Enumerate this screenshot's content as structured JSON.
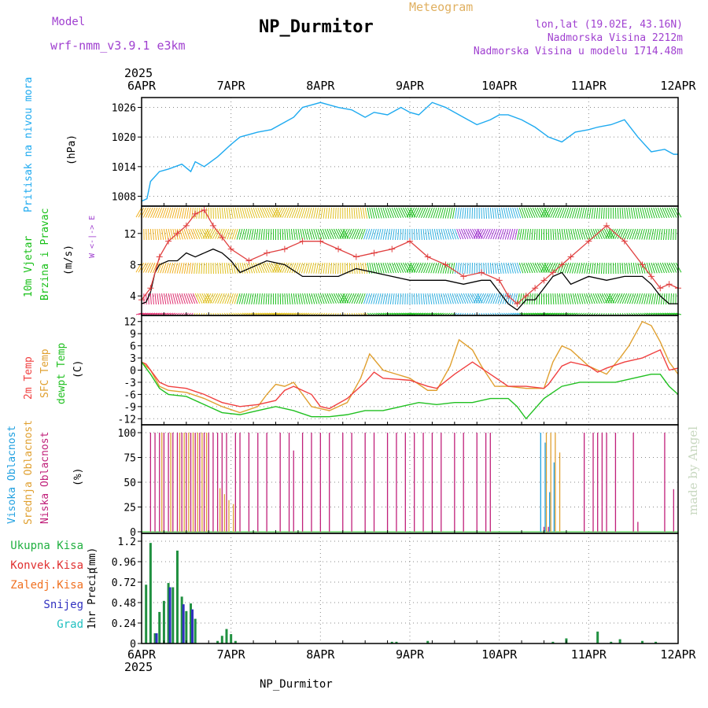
{
  "header": {
    "title": "NP_Durmitor",
    "subtitle": "Meteogram",
    "model_label": "Model",
    "model_name": "wrf-nmm_v3.9.1 e3km",
    "coords": "lon,lat (19.02E, 43.16N)",
    "elevation": "Nadmorska Visina 2212m",
    "model_elevation": "Nadmorska Visina u modelu 1714.48m",
    "year_top": "2025",
    "year_bottom": "2025",
    "footer": "NP_Durmitor",
    "credit": "made by Angel"
  },
  "colors": {
    "pressure": "#1eaaf0",
    "wind_title": "#18c018",
    "temp_2m": "#f04040",
    "sfc_temp": "#e0a030",
    "dewpt": "#20c020",
    "cloud_high": "#20a0e0",
    "cloud_mid": "#e0a030",
    "cloud_low": "#c0207a",
    "precip_total": "#209040",
    "precip_conv": "#e03030",
    "precip_frozen": "#f07020",
    "precip_snow": "#3030c0",
    "precip_hail": "#20c0c0",
    "model": "#a040d0"
  },
  "chart_data": [
    {
      "type": "line",
      "panel": "pressure",
      "ylabel": "Pritisak na nivou mora",
      "unit": "(hPa)",
      "x_categories": [
        "6APR",
        "7APR",
        "8APR",
        "9APR",
        "10APR",
        "11APR",
        "12APR"
      ],
      "yticks": [
        1008,
        1014,
        1020,
        1026
      ],
      "ylim": [
        1006,
        1028
      ],
      "series": [
        {
          "name": "Pressure",
          "x": [
            0,
            0.06,
            0.1,
            0.2,
            0.3,
            0.45,
            0.55,
            0.6,
            0.7,
            0.85,
            1.0,
            1.1,
            1.3,
            1.45,
            1.6,
            1.7,
            1.8,
            1.9,
            2.0,
            2.1,
            2.2,
            2.35,
            2.5,
            2.6,
            2.75,
            2.9,
            3.0,
            3.1,
            3.25,
            3.4,
            3.6,
            3.75,
            3.9,
            4.0,
            4.1,
            4.25,
            4.4,
            4.55,
            4.7,
            4.85,
            5.0,
            5.1,
            5.25,
            5.4,
            5.55,
            5.7,
            5.85,
            5.95,
            6.0
          ],
          "values": [
            1007,
            1007.5,
            1011,
            1013,
            1013.5,
            1014.5,
            1013,
            1015,
            1014,
            1016,
            1018.5,
            1020,
            1021,
            1021.5,
            1023,
            1024,
            1026,
            1026.5,
            1027,
            1026.5,
            1026,
            1025.5,
            1024,
            1025,
            1024.5,
            1026,
            1025,
            1024.5,
            1027,
            1026,
            1024,
            1022.5,
            1023.5,
            1024.5,
            1024.5,
            1023.5,
            1022,
            1020,
            1019,
            1021,
            1021.5,
            1022,
            1022.5,
            1023.5,
            1020,
            1017,
            1017.5,
            1016.5,
            1016.5
          ]
        }
      ]
    },
    {
      "type": "line",
      "panel": "wind",
      "ylabel_1": "10m Vjetar",
      "ylabel_2": "Brzina i Pravac",
      "unit": "(m/s)",
      "compass": "W <-|-> E",
      "yticks": [
        4,
        8,
        12
      ],
      "ylim": [
        1.5,
        15.5
      ],
      "series": [
        {
          "name": "Wind speed",
          "x": [
            0,
            0.05,
            0.1,
            0.15,
            0.2,
            0.3,
            0.4,
            0.5,
            0.6,
            0.7,
            0.8,
            0.9,
            1.0,
            1.1,
            1.2,
            1.4,
            1.6,
            1.8,
            2.0,
            2.2,
            2.4,
            2.6,
            2.8,
            3.0,
            3.2,
            3.4,
            3.6,
            3.8,
            3.9,
            4.0,
            4.1,
            4.2,
            4.3,
            4.4,
            4.5,
            4.6,
            4.7,
            4.8,
            5.0,
            5.2,
            5.4,
            5.6,
            5.7,
            5.8,
            5.9,
            6.0
          ],
          "values": [
            3,
            3.2,
            4.5,
            7,
            8,
            8.5,
            8.5,
            9.5,
            9,
            9.5,
            10,
            9.5,
            8.5,
            7,
            7.5,
            8.5,
            8,
            6.5,
            6.5,
            6.5,
            7.5,
            7,
            6.5,
            6,
            6,
            6,
            5.5,
            6,
            6,
            4.5,
            3,
            2.2,
            3.5,
            3.5,
            5,
            6.5,
            7,
            5.5,
            6.5,
            6,
            6.5,
            6.5,
            5.5,
            4,
            3,
            3
          ]
        },
        {
          "name": "Gust",
          "x": [
            0,
            0.1,
            0.2,
            0.3,
            0.4,
            0.5,
            0.6,
            0.7,
            0.8,
            0.9,
            1.0,
            1.2,
            1.4,
            1.6,
            1.8,
            2.0,
            2.2,
            2.4,
            2.6,
            2.8,
            3.0,
            3.2,
            3.4,
            3.6,
            3.8,
            4.0,
            4.1,
            4.2,
            4.3,
            4.4,
            4.5,
            4.6,
            4.7,
            4.8,
            5.0,
            5.2,
            5.4,
            5.6,
            5.7,
            5.8,
            5.9,
            6.0
          ],
          "values": [
            3.5,
            5,
            9,
            11,
            12,
            13,
            14.5,
            15,
            13,
            11.5,
            10,
            8.5,
            9.5,
            10,
            11,
            11,
            10,
            9,
            9.5,
            10,
            11,
            9,
            8,
            6.5,
            7,
            6,
            4,
            3,
            4,
            5,
            6,
            7,
            8,
            9,
            11,
            13,
            11,
            8,
            6.5,
            5,
            5.5,
            5
          ]
        }
      ]
    },
    {
      "type": "line",
      "panel": "temperature",
      "ylabel_1": "2m Temp",
      "ylabel_2": "SFC Temp",
      "ylabel_3": "dewpt Temp",
      "unit": "(C)",
      "yticks": [
        -12,
        -9,
        -6,
        -3,
        0,
        3,
        6,
        9,
        12
      ],
      "ylim": [
        -13.5,
        13.5
      ],
      "series": [
        {
          "name": "2m Temp",
          "x": [
            0,
            0.05,
            0.1,
            0.2,
            0.3,
            0.5,
            0.7,
            0.9,
            1.1,
            1.3,
            1.5,
            1.6,
            1.7,
            1.9,
            2.0,
            2.1,
            2.3,
            2.5,
            2.6,
            2.7,
            3.0,
            3.2,
            3.3,
            3.5,
            3.7,
            3.9,
            4.1,
            4.3,
            4.5,
            4.55,
            4.7,
            4.8,
            5.0,
            5.1,
            5.2,
            5.4,
            5.6,
            5.7,
            5.8,
            5.9,
            6.0
          ],
          "values": [
            2,
            1.5,
            0,
            -3,
            -4,
            -4.5,
            -6,
            -8,
            -9,
            -8.5,
            -7.5,
            -5,
            -4,
            -6,
            -9,
            -9.5,
            -7,
            -3,
            -0.5,
            -2,
            -2.5,
            -4,
            -4.5,
            -1,
            2,
            -1,
            -4,
            -4,
            -4.5,
            -3.5,
            1,
            2,
            1,
            -0.5,
            0.5,
            2,
            3,
            4,
            5,
            0,
            0.5
          ]
        },
        {
          "name": "SFC Temp",
          "x": [
            0,
            0.1,
            0.2,
            0.3,
            0.5,
            0.7,
            0.9,
            1.1,
            1.3,
            1.4,
            1.5,
            1.6,
            1.7,
            1.8,
            1.9,
            2.0,
            2.1,
            2.3,
            2.45,
            2.55,
            2.7,
            3.0,
            3.2,
            3.3,
            3.45,
            3.55,
            3.7,
            3.8,
            3.95,
            4.1,
            4.3,
            4.5,
            4.6,
            4.7,
            4.8,
            5.0,
            5.2,
            5.35,
            5.45,
            5.6,
            5.7,
            5.8,
            5.9,
            6.0
          ],
          "values": [
            2,
            0,
            -4,
            -5,
            -5.5,
            -7,
            -9,
            -10.5,
            -9,
            -6,
            -3.5,
            -4,
            -3,
            -6,
            -9,
            -9.5,
            -10,
            -8,
            -2,
            4,
            0,
            -2,
            -5,
            -5,
            1,
            7.5,
            5,
            1,
            -4,
            -4,
            -4.5,
            -4.5,
            2,
            6,
            5,
            1,
            -1,
            3,
            6,
            12,
            11,
            7,
            2,
            -1
          ]
        },
        {
          "name": "Dewpoint",
          "x": [
            0,
            0.1,
            0.2,
            0.3,
            0.5,
            0.7,
            0.9,
            1.1,
            1.3,
            1.5,
            1.7,
            1.9,
            2.1,
            2.3,
            2.5,
            2.7,
            2.9,
            3.1,
            3.3,
            3.5,
            3.7,
            3.9,
            4.1,
            4.2,
            4.3,
            4.5,
            4.7,
            4.9,
            5.1,
            5.3,
            5.5,
            5.7,
            5.8,
            5.9,
            6.0
          ],
          "values": [
            2,
            -1,
            -4.5,
            -6,
            -6.5,
            -8.5,
            -10.5,
            -11,
            -10,
            -9,
            -10,
            -11.5,
            -11.5,
            -11,
            -10,
            -10,
            -9,
            -8,
            -8.5,
            -8,
            -8,
            -7,
            -7,
            -9,
            -12,
            -7,
            -4,
            -3,
            -3,
            -3,
            -2,
            -1,
            -1,
            -4,
            -6
          ]
        }
      ]
    },
    {
      "type": "bar",
      "panel": "clouds",
      "ylabel_1": "Visoka Oblacnost",
      "ylabel_2": "Srednja Oblacnost",
      "ylabel_3": "Niska Oblacnost",
      "unit": "(%)",
      "yticks": [
        0,
        25,
        50,
        75,
        100
      ],
      "ylim": [
        0,
        100
      ],
      "low": {
        "x": [
          0.1,
          0.15,
          0.2,
          0.25,
          0.3,
          0.35,
          0.4,
          0.45,
          0.5,
          0.55,
          0.6,
          0.65,
          0.7,
          0.75,
          0.8,
          0.85,
          0.9,
          0.95,
          1.05,
          1.1,
          1.2,
          1.3,
          1.4,
          1.55,
          1.65,
          1.7,
          1.8,
          1.9,
          2.0,
          2.1,
          2.25,
          2.35,
          2.5,
          2.6,
          2.75,
          2.85,
          2.95,
          3.05,
          3.15,
          3.25,
          3.35,
          3.5,
          3.6,
          3.75,
          3.85,
          3.9,
          4.5,
          4.55,
          4.95,
          5.05,
          5.1,
          5.15,
          5.2,
          5.3,
          5.5,
          5.55,
          5.85,
          5.95
        ],
        "values": [
          100,
          100,
          100,
          100,
          100,
          100,
          100,
          100,
          100,
          100,
          100,
          100,
          100,
          100,
          100,
          100,
          100,
          100,
          100,
          100,
          100,
          100,
          100,
          100,
          100,
          82,
          100,
          100,
          100,
          100,
          100,
          100,
          100,
          100,
          100,
          100,
          100,
          100,
          100,
          100,
          100,
          100,
          100,
          100,
          100,
          100,
          5,
          5,
          100,
          100,
          100,
          100,
          100,
          100,
          100,
          10,
          100,
          43
        ]
      },
      "mid": {
        "x": [
          0.2,
          0.3,
          0.4,
          0.45,
          0.5,
          0.55,
          0.6,
          0.65,
          0.7,
          0.85,
          0.9,
          0.95,
          1.0,
          4.5,
          4.55,
          4.6,
          4.65
        ],
        "values": [
          100,
          100,
          100,
          100,
          100,
          100,
          100,
          100,
          100,
          44,
          38,
          32,
          28,
          100,
          100,
          100,
          80
        ]
      },
      "high": {
        "x": [
          4.45,
          4.5,
          4.55,
          4.6
        ],
        "values": [
          100,
          90,
          40,
          70
        ]
      }
    },
    {
      "type": "bar",
      "panel": "precipitation",
      "ylabel": "1hr Precip",
      "unit": "(mm)",
      "legend": [
        "Ukupna Kisa",
        "Konvek.Kisa",
        "Zaledj.Kisa",
        "Snijeg",
        "Grad"
      ],
      "yticks": [
        0,
        0.24,
        0.48,
        0.72,
        0.96,
        1.2
      ],
      "ylim": [
        0,
        1.2
      ],
      "x_categories": [
        "6APR",
        "7APR",
        "8APR",
        "9APR",
        "10APR",
        "11APR",
        "12APR"
      ],
      "total": {
        "x": [
          0.05,
          0.1,
          0.15,
          0.2,
          0.25,
          0.3,
          0.35,
          0.4,
          0.45,
          0.5,
          0.55,
          0.6,
          0.85,
          0.9,
          0.95,
          1.0,
          1.05,
          2.8,
          2.85,
          3.2,
          4.6,
          4.75,
          5.1,
          5.25,
          5.35,
          5.6,
          5.75
        ],
        "values": [
          0.69,
          1.18,
          0.12,
          0.37,
          0.5,
          0.71,
          0.66,
          1.09,
          0.55,
          0.38,
          0.47,
          0.29,
          0.03,
          0.09,
          0.17,
          0.11,
          0.03,
          0.02,
          0.02,
          0.03,
          0.02,
          0.06,
          0.14,
          0.02,
          0.05,
          0.03,
          0.02
        ]
      },
      "snow": {
        "x": [
          0.15,
          0.3,
          0.45,
          0.55
        ],
        "values": [
          0.12,
          0.66,
          0.46,
          0.4
        ]
      }
    }
  ]
}
